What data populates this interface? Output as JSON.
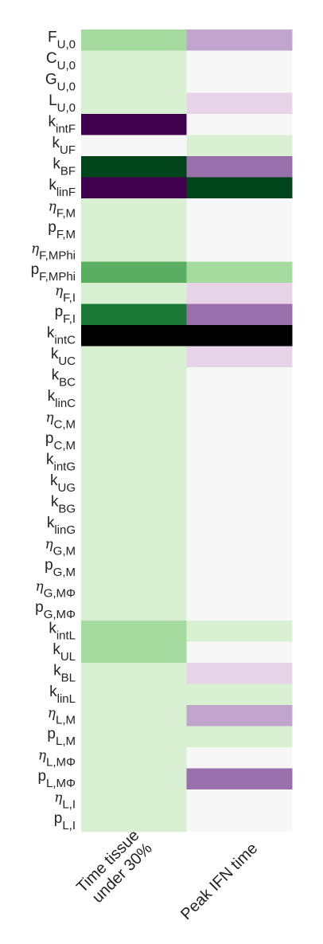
{
  "chart_data": {
    "type": "heatmap",
    "title": "",
    "columns": [
      "Time tissue\nunder 30%",
      "Peak IFN time"
    ],
    "column_palettes": [
      "green",
      "purple_green"
    ],
    "rows": [
      {
        "name": "F",
        "sub": "U,0"
      },
      {
        "name": "C",
        "sub": "U,0"
      },
      {
        "name": "G",
        "sub": "U,0"
      },
      {
        "name": "L",
        "sub": "U,0"
      },
      {
        "name": "k",
        "sub": "intF"
      },
      {
        "name": "k",
        "sub": "UF"
      },
      {
        "name": "k",
        "sub": "BF"
      },
      {
        "name": "k",
        "sub": "linF"
      },
      {
        "name": "η",
        "sub": "F,M"
      },
      {
        "name": "p",
        "sub": "F,M"
      },
      {
        "name": "η",
        "sub": "F,MPhi"
      },
      {
        "name": "p",
        "sub": "F,MPhi"
      },
      {
        "name": "η",
        "sub": "F,I"
      },
      {
        "name": "p",
        "sub": "F,I"
      },
      {
        "name": "k",
        "sub": "intC"
      },
      {
        "name": "k",
        "sub": "UC"
      },
      {
        "name": "k",
        "sub": "BC"
      },
      {
        "name": "k",
        "sub": "linC"
      },
      {
        "name": "η",
        "sub": "C,M"
      },
      {
        "name": "p",
        "sub": "C,M"
      },
      {
        "name": "k",
        "sub": "intG"
      },
      {
        "name": "k",
        "sub": "UG"
      },
      {
        "name": "k",
        "sub": "BG"
      },
      {
        "name": "k",
        "sub": "linG"
      },
      {
        "name": "η",
        "sub": "G,M"
      },
      {
        "name": "p",
        "sub": "G,M"
      },
      {
        "name": "η",
        "sub": "G,MΦ"
      },
      {
        "name": "p",
        "sub": "G,MΦ"
      },
      {
        "name": "k",
        "sub": "intL"
      },
      {
        "name": "k",
        "sub": "UL"
      },
      {
        "name": "k",
        "sub": "BL"
      },
      {
        "name": "k",
        "sub": "linL"
      },
      {
        "name": "η",
        "sub": "L,M"
      },
      {
        "name": "p",
        "sub": "L,M"
      },
      {
        "name": "η",
        "sub": "L,MΦ"
      },
      {
        "name": "p",
        "sub": "L,MΦ"
      },
      {
        "name": "η",
        "sub": "L,I"
      },
      {
        "name": "p",
        "sub": "L,I"
      }
    ],
    "colors": [
      [
        "#a6dba0",
        "#c2a5cf"
      ],
      [
        "#d9f0d3",
        "#f7f7f7"
      ],
      [
        "#d9f0d3",
        "#f7f7f7"
      ],
      [
        "#d9f0d3",
        "#e7d4e8"
      ],
      [
        "#40004b",
        "#f7f7f7"
      ],
      [
        "#f7f7f7",
        "#d9f0d3"
      ],
      [
        "#00441b",
        "#9970ab"
      ],
      [
        "#40004b",
        "#00441b"
      ],
      [
        "#d9f0d3",
        "#f7f7f7"
      ],
      [
        "#d9f0d3",
        "#f7f7f7"
      ],
      [
        "#d9f0d3",
        "#f7f7f7"
      ],
      [
        "#5aae61",
        "#a6dba0"
      ],
      [
        "#d9f0d3",
        "#e7d4e8"
      ],
      [
        "#1b7837",
        "#9970ab"
      ],
      [
        "#000000",
        "#000000"
      ],
      [
        "#d9f0d3",
        "#e7d4e8"
      ],
      [
        "#d9f0d3",
        "#f7f7f7"
      ],
      [
        "#d9f0d3",
        "#f7f7f7"
      ],
      [
        "#d9f0d3",
        "#f7f7f7"
      ],
      [
        "#d9f0d3",
        "#f7f7f7"
      ],
      [
        "#d9f0d3",
        "#f7f7f7"
      ],
      [
        "#d9f0d3",
        "#f7f7f7"
      ],
      [
        "#d9f0d3",
        "#f7f7f7"
      ],
      [
        "#d9f0d3",
        "#f7f7f7"
      ],
      [
        "#d9f0d3",
        "#f7f7f7"
      ],
      [
        "#d9f0d3",
        "#f7f7f7"
      ],
      [
        "#d9f0d3",
        "#f7f7f7"
      ],
      [
        "#d9f0d3",
        "#f7f7f7"
      ],
      [
        "#a6dba0",
        "#d9f0d3"
      ],
      [
        "#a6dba0",
        "#f7f7f7"
      ],
      [
        "#d9f0d3",
        "#e7d4e8"
      ],
      [
        "#d9f0d3",
        "#d9f0d3"
      ],
      [
        "#d9f0d3",
        "#c2a5cf"
      ],
      [
        "#d9f0d3",
        "#d9f0d3"
      ],
      [
        "#d9f0d3",
        "#f7f7f7"
      ],
      [
        "#d9f0d3",
        "#9970ab"
      ],
      [
        "#d9f0d3",
        "#f7f7f7"
      ],
      [
        "#d9f0d3",
        "#f7f7f7"
      ]
    ],
    "legend": "none",
    "grid": false
  }
}
